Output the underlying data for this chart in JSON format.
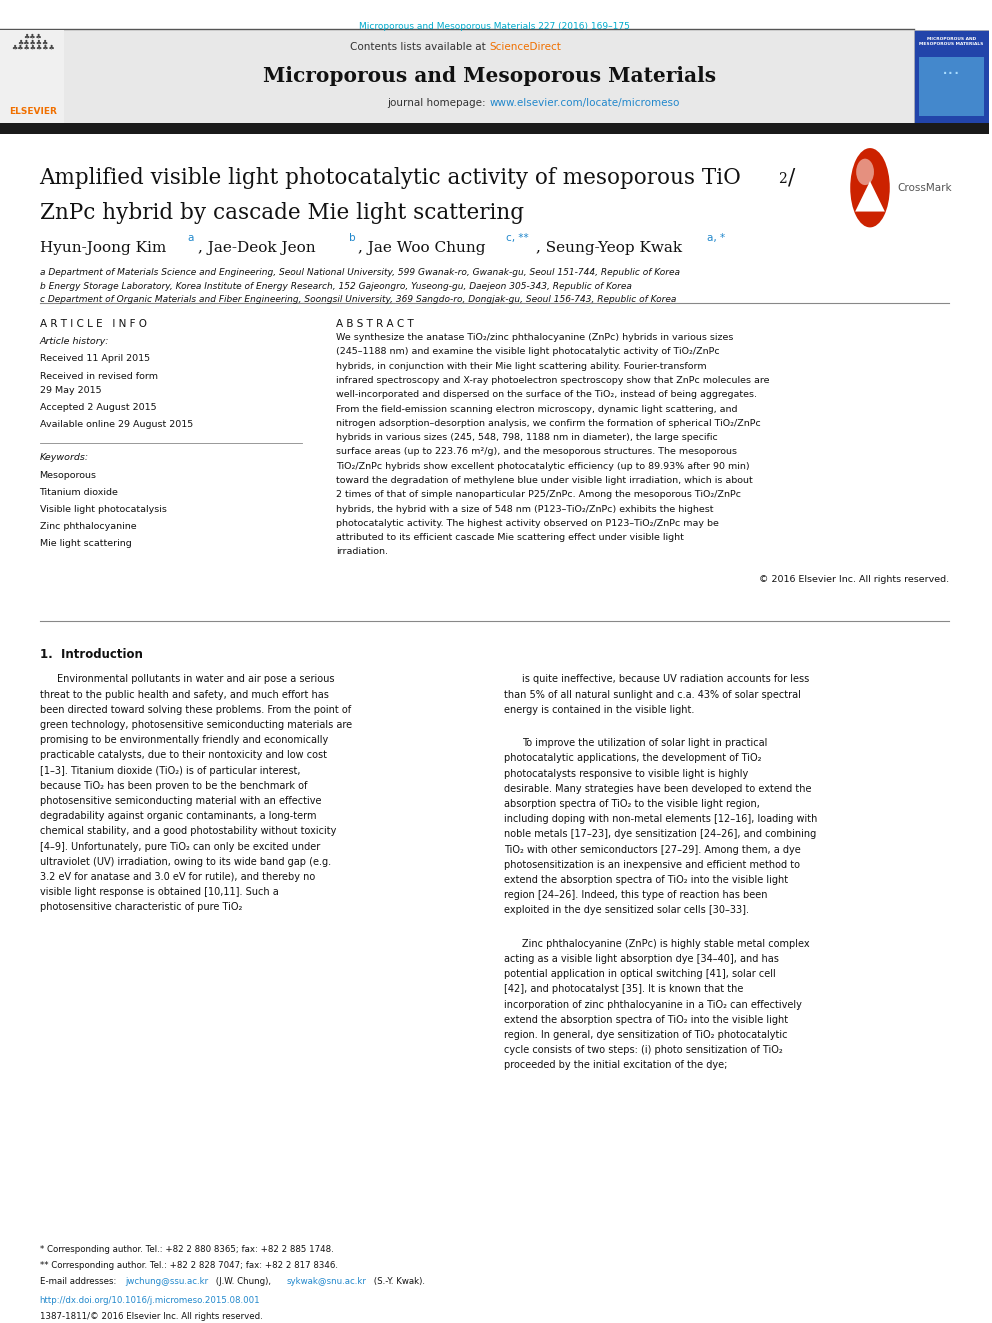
{
  "page_width": 9.92,
  "page_height": 13.23,
  "bg_color": "#ffffff",
  "top_citation": "Microporous and Mesoporous Materials 227 (2016) 169–175",
  "citation_color": "#00aacc",
  "journal_title": "Microporous and Mesoporous Materials",
  "contents_text": "Contents lists available at ",
  "sciencedirect_text": "ScienceDirect",
  "sciencedirect_color": "#f07000",
  "homepage_text": "journal homepage: ",
  "homepage_url": "www.elsevier.com/locate/micromeso",
  "homepage_url_color": "#2288cc",
  "header_bg_color": "#e8e8e8",
  "black_bar_color": "#1a1a1a",
  "article_info_header": "A R T I C L E   I N F O",
  "abstract_header": "A B S T R A C T",
  "article_history_label": "Article history:",
  "received": "Received 11 April 2015",
  "revised": "Received in revised form",
  "revised2": "29 May 2015",
  "accepted": "Accepted 2 August 2015",
  "available": "Available online 29 August 2015",
  "keywords_label": "Keywords:",
  "keywords": [
    "Mesoporous",
    "Titanium dioxide",
    "Visible light photocatalysis",
    "Zinc phthalocyanine",
    "Mie light scattering"
  ],
  "abstract_text": "We synthesize the anatase TiO₂/zinc phthalocyanine (ZnPc) hybrids in various sizes (245–1188 nm) and examine the visible light photocatalytic activity of TiO₂/ZnPc hybrids, in conjunction with their Mie light scattering ability. Fourier-transform infrared spectroscopy and X-ray photoelectron spectroscopy show that ZnPc molecules are well-incorporated and dispersed on the surface of the TiO₂, instead of being aggregates. From the field-emission scanning electron microscopy, dynamic light scattering, and nitrogen adsorption–desorption analysis, we confirm the formation of spherical TiO₂/ZnPc hybrids in various sizes (245, 548, 798, 1188 nm in diameter), the large specific surface areas (up to 223.76 m²/g), and the mesoporous structures. The mesoporous TiO₂/ZnPc hybrids show excellent photocatalytic efficiency (up to 89.93% after 90 min) toward the degradation of methylene blue under visible light irradiation, which is about 2 times of that of simple nanoparticular P25/ZnPc. Among the mesoporous TiO₂/ZnPc hybrids, the hybrid with a size of 548 nm (P123–TiO₂/ZnPc) exhibits the highest photocatalytic activity. The highest activity observed on P123–TiO₂/ZnPc may be attributed to its efficient cascade Mie scattering effect under visible light irradiation.",
  "copyright": "© 2016 Elsevier Inc. All rights reserved.",
  "section1_title": "1.  Introduction",
  "intro_col1_p1": "Environmental pollutants in water and air pose a serious threat to the public health and safety, and much effort has been directed toward solving these problems. From the point of green technology, photosensitive semiconducting materials are promising to be environmentally friendly and economically practicable catalysts, due to their nontoxicity and low cost [1–3]. Titanium dioxide (TiO₂) is of particular interest, because TiO₂ has been proven to be the benchmark of photosensitive semiconducting material with an effective degradability against organic contaminants, a long-term chemical stability, and a good photostability without toxicity [4–9]. Unfortunately, pure TiO₂ can only be excited under ultraviolet (UV) irradiation, owing to its wide band gap (e.g. 3.2 eV for anatase and 3.0 eV for rutile), and thereby no visible light response is obtained [10,11]. Such a photosensitive characteristic of pure TiO₂",
  "intro_col2_p1": "is quite ineffective, because UV radiation accounts for less than 5% of all natural sunlight and c.a. 43% of solar spectral energy is contained in the visible light.",
  "intro_col2_p2": "To improve the utilization of solar light in practical photocatalytic applications, the development of TiO₂ photocatalysts responsive to visible light is highly desirable. Many strategies have been developed to extend the absorption spectra of TiO₂ to the visible light region, including doping with non-metal elements [12–16], loading with noble metals [17–23], dye sensitization [24–26], and combining TiO₂ with other semiconductors [27–29]. Among them, a dye photosensitization is an inexpensive and efficient method to extend the absorption spectra of TiO₂ into the visible light region [24–26]. Indeed, this type of reaction has been exploited in the dye sensitized solar cells [30–33].",
  "intro_col2_p3": "Zinc phthalocyanine (ZnPc) is highly stable metal complex acting as a visible light absorption dye [34–40], and has potential application in optical switching [41], solar cell [42], and photocatalyst [35]. It is known that the incorporation of zinc phthalocyanine in a TiO₂ can effectively extend the absorption spectra of TiO₂ into the visible light region. In general, dye sensitization of TiO₂ photocatalytic cycle consists of two steps: (i) photo sensitization of TiO₂ proceeded by the initial excitation of the dye;",
  "affil_a": "a Department of Materials Science and Engineering, Seoul National University, 599 Gwanak-ro, Gwanak-gu, Seoul 151-744, Republic of Korea",
  "affil_b": "b Energy Storage Laboratory, Korea Institute of Energy Research, 152 Gajeongro, Yuseong-gu, Daejeon 305-343, Republic of Korea",
  "affil_c": "c Department of Organic Materials and Fiber Engineering, Soongsil University, 369 Sangdo-ro, Dongjak-gu, Seoul 156-743, Republic of Korea",
  "footnote1": "* Corresponding author. Tel.: +82 2 880 8365; fax: +82 2 885 1748.",
  "footnote2": "** Corresponding author. Tel.: +82 2 828 7047; fax: +82 2 817 8346.",
  "email1": "jwchung@ssu.ac.kr",
  "email2": "sykwak@snu.ac.kr",
  "doi_text": "http://dx.doi.org/10.1016/j.micromeso.2015.08.001",
  "issn_text": "1387-1811/© 2016 Elsevier Inc. All rights reserved.",
  "elsevier_orange": "#f07000",
  "link_blue": "#2288cc",
  "text_dark": "#111111"
}
